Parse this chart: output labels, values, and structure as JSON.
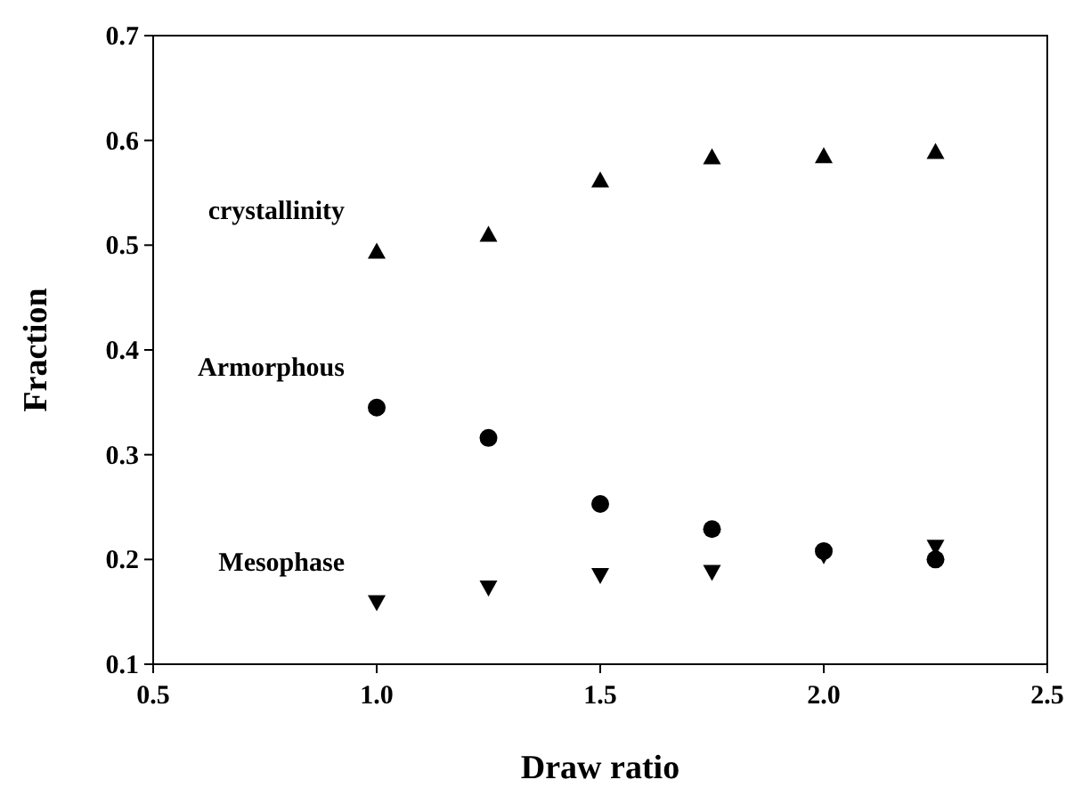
{
  "chart_data": {
    "type": "scatter",
    "xlabel": "Draw ratio",
    "ylabel": "Fraction",
    "x": [
      1.0,
      1.25,
      1.5,
      1.75,
      2.0,
      2.25
    ],
    "xlim": [
      0.5,
      2.5
    ],
    "xticks": [
      {
        "value": 0.5,
        "label": "0.5"
      },
      {
        "value": 1.0,
        "label": "1.0"
      },
      {
        "value": 1.5,
        "label": "1.5"
      },
      {
        "value": 2.0,
        "label": "2.0"
      },
      {
        "value": 2.5,
        "label": "2.5"
      }
    ],
    "ylim": [
      0.1,
      0.7
    ],
    "yticks": [
      0.1,
      0.2,
      0.3,
      0.4,
      0.5,
      0.6,
      0.7
    ],
    "grid": false,
    "series": [
      {
        "name": "crystallinity",
        "color": "#000000",
        "marker": "triangle",
        "values": [
          0.494,
          0.51,
          0.562,
          0.584,
          0.585,
          0.589
        ]
      },
      {
        "name": "Armorphous",
        "color": "#000000",
        "marker": "circle",
        "values": [
          0.345,
          0.316,
          0.253,
          0.229,
          0.208,
          0.2
        ]
      },
      {
        "name": "Mesophase",
        "color": "#000000",
        "marker": "triangle-down",
        "values": [
          0.159,
          0.173,
          0.185,
          0.188,
          0.204,
          0.212
        ]
      }
    ]
  }
}
